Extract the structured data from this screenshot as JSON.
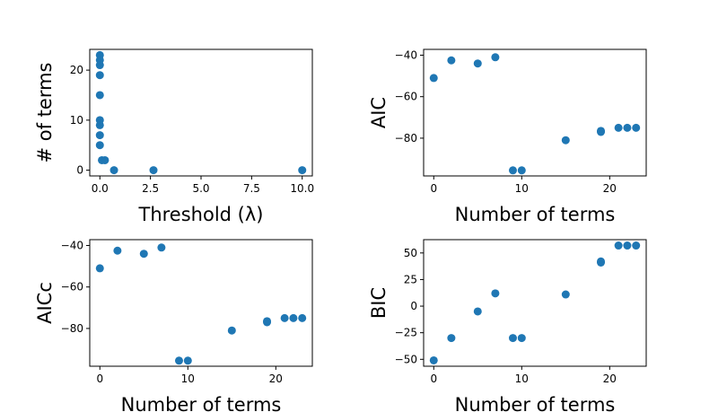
{
  "chart_data": [
    {
      "id": "threshold",
      "type": "scatter",
      "xlabel": "Threshold (λ)",
      "ylabel": "# of terms",
      "xlim": [
        -0.5,
        10.5
      ],
      "ylim": [
        -1.15,
        24.15
      ],
      "xticks": [
        0,
        2.5,
        5,
        7.5,
        10
      ],
      "xtick_labels": [
        "0.0",
        "2.5",
        "5.0",
        "7.5",
        "10.0"
      ],
      "yticks": [
        0,
        10,
        20
      ],
      "ytick_labels": [
        "0",
        "10",
        "20"
      ],
      "color": "#1f77b4",
      "grid": false,
      "points": [
        {
          "x": 0.0,
          "y": 23
        },
        {
          "x": 0.0,
          "y": 22
        },
        {
          "x": 0.0,
          "y": 21
        },
        {
          "x": 0.0,
          "y": 19
        },
        {
          "x": 0.0,
          "y": 15
        },
        {
          "x": 0.0,
          "y": 10
        },
        {
          "x": 0.0,
          "y": 9
        },
        {
          "x": 0.0,
          "y": 7
        },
        {
          "x": 0.0,
          "y": 5
        },
        {
          "x": 0.1,
          "y": 2
        },
        {
          "x": 0.25,
          "y": 2
        },
        {
          "x": 0.7,
          "y": 0
        },
        {
          "x": 2.65,
          "y": 0
        },
        {
          "x": 10.0,
          "y": 0
        }
      ]
    },
    {
      "id": "aic",
      "type": "scatter",
      "xlabel": "Number of terms",
      "ylabel": "AIC",
      "xlim": [
        -1.15,
        24.15
      ],
      "ylim": [
        -98.2,
        -37.2
      ],
      "xticks": [
        0,
        10,
        20
      ],
      "xtick_labels": [
        "0",
        "10",
        "20"
      ],
      "yticks": [
        -80,
        -60,
        -40
      ],
      "ytick_labels": [
        "−80",
        "−60",
        "−40"
      ],
      "color": "#1f77b4",
      "grid": false,
      "points": [
        {
          "x": 0,
          "y": -51
        },
        {
          "x": 2,
          "y": -42.5
        },
        {
          "x": 5,
          "y": -44
        },
        {
          "x": 7,
          "y": -41
        },
        {
          "x": 9,
          "y": -95.5
        },
        {
          "x": 10,
          "y": -95.5
        },
        {
          "x": 15,
          "y": -81
        },
        {
          "x": 19,
          "y": -77
        },
        {
          "x": 19,
          "y": -76.5
        },
        {
          "x": 21,
          "y": -75
        },
        {
          "x": 22,
          "y": -75
        },
        {
          "x": 23,
          "y": -75
        }
      ]
    },
    {
      "id": "aicc",
      "type": "scatter",
      "xlabel": "Number of terms",
      "ylabel": "AICc",
      "xlim": [
        -1.15,
        24.15
      ],
      "ylim": [
        -98.2,
        -37.2
      ],
      "xticks": [
        0,
        10,
        20
      ],
      "xtick_labels": [
        "0",
        "10",
        "20"
      ],
      "yticks": [
        -80,
        -60,
        -40
      ],
      "ytick_labels": [
        "−80",
        "−60",
        "−40"
      ],
      "color": "#1f77b4",
      "grid": false,
      "points": [
        {
          "x": 0,
          "y": -51
        },
        {
          "x": 2,
          "y": -42.5
        },
        {
          "x": 5,
          "y": -44
        },
        {
          "x": 7,
          "y": -41
        },
        {
          "x": 9,
          "y": -95.5
        },
        {
          "x": 10,
          "y": -95.5
        },
        {
          "x": 15,
          "y": -81
        },
        {
          "x": 19,
          "y": -77
        },
        {
          "x": 19,
          "y": -76.5
        },
        {
          "x": 21,
          "y": -75
        },
        {
          "x": 22,
          "y": -75
        },
        {
          "x": 23,
          "y": -75
        }
      ]
    },
    {
      "id": "bic",
      "type": "scatter",
      "xlabel": "Number of terms",
      "ylabel": "BIC",
      "xlim": [
        -1.15,
        24.15
      ],
      "ylim": [
        -56.5,
        62.5
      ],
      "xticks": [
        0,
        10,
        20
      ],
      "xtick_labels": [
        "0",
        "10",
        "20"
      ],
      "yticks": [
        -50,
        -25,
        0,
        25,
        50
      ],
      "ytick_labels": [
        "−50",
        "−25",
        "0",
        "25",
        "50"
      ],
      "color": "#1f77b4",
      "grid": false,
      "points": [
        {
          "x": 0,
          "y": -51
        },
        {
          "x": 2,
          "y": -30
        },
        {
          "x": 5,
          "y": -5
        },
        {
          "x": 7,
          "y": 12
        },
        {
          "x": 9,
          "y": -30
        },
        {
          "x": 10,
          "y": -30
        },
        {
          "x": 15,
          "y": 11
        },
        {
          "x": 19,
          "y": 41
        },
        {
          "x": 19,
          "y": 42
        },
        {
          "x": 21,
          "y": 57
        },
        {
          "x": 22,
          "y": 57
        },
        {
          "x": 23,
          "y": 57
        }
      ]
    }
  ]
}
